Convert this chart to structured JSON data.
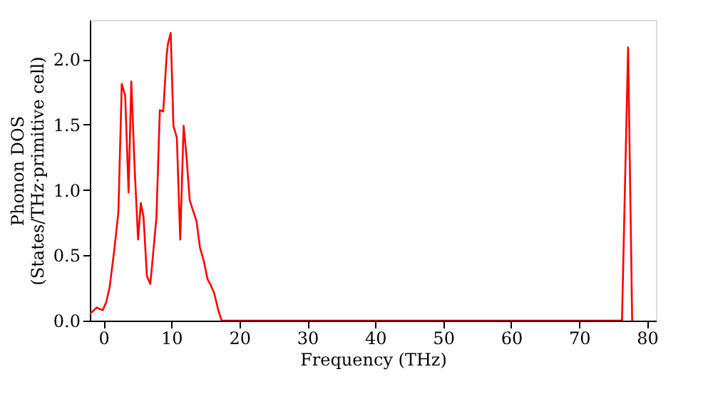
{
  "chart_data": {
    "type": "line",
    "xlabel": "Frequency (THz)",
    "ylabel": "Phonon DOS\n(States/THz·primitive cell)",
    "xlim": [
      -2,
      81.3
    ],
    "ylim": [
      0,
      2.3
    ],
    "xticks": [
      0,
      10,
      20,
      30,
      40,
      50,
      60,
      70,
      80
    ],
    "yticks": [
      {
        "value": 0,
        "label": "0.0"
      },
      {
        "value": 0.5,
        "label": "0.5"
      },
      {
        "value": 1,
        "label": "1.0"
      },
      {
        "value": 1.5,
        "label": "1.5"
      },
      {
        "value": 2,
        "label": "2.0"
      }
    ],
    "grid": false,
    "legend": false,
    "line_style": "solid",
    "marker": "none",
    "series": [
      {
        "color": "#ff0000",
        "x": [
          -2.0,
          -1.0,
          -0.1,
          0.4,
          0.9,
          1.6,
          2.2,
          2.7,
          3.2,
          3.7,
          4.1,
          4.6,
          5.1,
          5.5,
          5.9,
          6.4,
          6.9,
          7.8,
          8.3,
          8.8,
          9.3,
          9.5,
          9.9,
          10.3,
          10.8,
          11.3,
          11.8,
          12.2,
          12.7,
          13.7,
          14.2,
          14.8,
          15.3,
          15.8,
          16.3,
          16.9,
          17.4,
          76.3,
          77.2,
          77.8
        ],
        "values": [
          0.05,
          0.1,
          0.08,
          0.14,
          0.25,
          0.54,
          0.83,
          1.81,
          1.72,
          0.98,
          1.83,
          1.16,
          0.62,
          0.9,
          0.79,
          0.34,
          0.28,
          0.79,
          1.61,
          1.6,
          2.03,
          2.12,
          2.2,
          1.49,
          1.4,
          0.62,
          1.49,
          1.27,
          0.92,
          0.76,
          0.56,
          0.45,
          0.32,
          0.27,
          0.21,
          0.08,
          0.0,
          0.0,
          2.09,
          0.0
        ]
      }
    ]
  }
}
